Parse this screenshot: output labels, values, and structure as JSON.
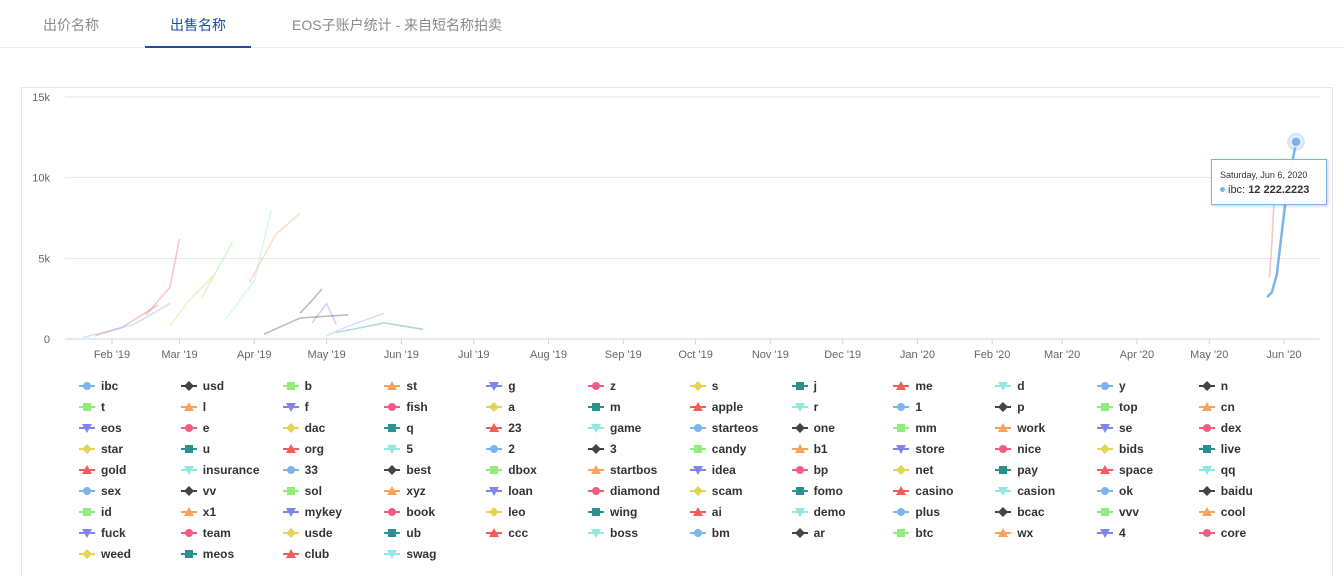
{
  "tabs": [
    {
      "label": "出价名称",
      "active": false
    },
    {
      "label": "出售名称",
      "active": true
    },
    {
      "label": "EOS子账户统计 - 来自短名称拍卖",
      "active": false
    }
  ],
  "colors": {
    "accent": "#1a4fa3",
    "palette": [
      "#7cb5ec",
      "#434348",
      "#90ed7d",
      "#f7a35c",
      "#8085e9",
      "#f15c80",
      "#e4d354",
      "#2b908f",
      "#f45b5b",
      "#91e8e1"
    ]
  },
  "tooltip": {
    "date": "Saturday, Jun 6, 2020",
    "series": "ibc",
    "value": "12 222.2223"
  },
  "chart_data": {
    "type": "line",
    "title": "",
    "xlabel": "",
    "ylabel": "",
    "ylim": [
      0,
      15000
    ],
    "yticks": [
      "0",
      "5k",
      "10k",
      "15k"
    ],
    "xticks": [
      "Feb '19",
      "Mar '19",
      "Apr '19",
      "May '19",
      "Jun '19",
      "Jul '19",
      "Aug '19",
      "Sep '19",
      "Oct '19",
      "Nov '19",
      "Dec '19",
      "Jan '20",
      "Feb '20",
      "Mar '20",
      "Apr '20",
      "May '20",
      "Jun '20"
    ],
    "grid": true,
    "legend_position": "bottom",
    "highlight": {
      "series": "ibc",
      "x": "2020-06-06",
      "y": 12222.2223
    },
    "series": [
      {
        "name": "ibc",
        "values": [
          [
            "2020-05-25",
            2600
          ],
          [
            "2020-05-27",
            2900
          ],
          [
            "2020-05-29",
            4000
          ],
          [
            "2020-06-02",
            9000
          ],
          [
            "2020-06-06",
            12222.2223
          ]
        ]
      },
      {
        "name": "usd",
        "values": [
          [
            "2019-04-20",
            1600
          ],
          [
            "2019-04-25",
            2400
          ],
          [
            "2019-04-29",
            3100
          ]
        ]
      },
      {
        "name": "b",
        "values": [
          [
            "2019-03-10",
            2500
          ],
          [
            "2019-03-18",
            4700
          ],
          [
            "2019-03-23",
            6000
          ]
        ]
      },
      {
        "name": "st",
        "values": [
          [
            "2019-03-30",
            3500
          ],
          [
            "2019-04-10",
            6500
          ],
          [
            "2019-04-20",
            7800
          ]
        ]
      },
      {
        "name": "g",
        "values": [
          [
            "2019-04-25",
            1000
          ],
          [
            "2019-05-01",
            2200
          ],
          [
            "2019-05-05",
            900
          ]
        ]
      },
      {
        "name": "z",
        "values": [
          [
            "2019-01-25",
            200
          ],
          [
            "2019-02-05",
            700
          ],
          [
            "2019-02-20",
            2100
          ]
        ]
      },
      {
        "name": "s",
        "values": [
          [
            "2019-02-25",
            800
          ],
          [
            "2019-03-05",
            2400
          ],
          [
            "2019-03-15",
            3900
          ]
        ]
      },
      {
        "name": "j",
        "values": [
          [
            "2019-05-05",
            400
          ],
          [
            "2019-05-25",
            1000
          ],
          [
            "2019-06-10",
            600
          ]
        ]
      },
      {
        "name": "me",
        "values": [
          [
            "2019-02-15",
            1500
          ],
          [
            "2019-02-25",
            3200
          ],
          [
            "2019-03-01",
            6200
          ]
        ]
      },
      {
        "name": "d",
        "values": [
          [
            "2019-03-20",
            1200
          ],
          [
            "2019-04-01",
            3600
          ],
          [
            "2019-04-08",
            8000
          ]
        ]
      },
      {
        "name": "y",
        "values": [
          [
            "2019-05-01",
            200
          ],
          [
            "2019-05-10",
            800
          ],
          [
            "2019-05-25",
            1600
          ]
        ]
      },
      {
        "name": "n",
        "values": [
          [
            "2019-04-05",
            300
          ],
          [
            "2019-04-20",
            1300
          ],
          [
            "2019-05-10",
            1500
          ]
        ]
      },
      {
        "name": "1",
        "values": [
          [
            "2019-01-20",
            100
          ],
          [
            "2019-02-10",
            900
          ],
          [
            "2019-02-25",
            2200
          ]
        ]
      },
      {
        "name": "gold",
        "values": [
          [
            "2020-05-26",
            3800
          ],
          [
            "2020-05-27",
            6000
          ],
          [
            "2020-05-28",
            9000
          ]
        ]
      }
    ]
  },
  "legend": [
    {
      "name": "ibc",
      "color": "#7cb5ec",
      "symbol": "circle"
    },
    {
      "name": "usd",
      "color": "#434348",
      "symbol": "diamond"
    },
    {
      "name": "b",
      "color": "#90ed7d",
      "symbol": "square"
    },
    {
      "name": "st",
      "color": "#f7a35c",
      "symbol": "triangle"
    },
    {
      "name": "g",
      "color": "#8085e9",
      "symbol": "triangle-down"
    },
    {
      "name": "z",
      "color": "#f15c80",
      "symbol": "circle"
    },
    {
      "name": "s",
      "color": "#e4d354",
      "symbol": "diamond"
    },
    {
      "name": "j",
      "color": "#2b908f",
      "symbol": "square"
    },
    {
      "name": "me",
      "color": "#f45b5b",
      "symbol": "triangle"
    },
    {
      "name": "d",
      "color": "#91e8e1",
      "symbol": "triangle-down"
    },
    {
      "name": "y",
      "color": "#7cb5ec",
      "symbol": "circle"
    },
    {
      "name": "n",
      "color": "#434348",
      "symbol": "diamond"
    },
    {
      "name": "t",
      "color": "#90ed7d",
      "symbol": "square"
    },
    {
      "name": "l",
      "color": "#f7a35c",
      "symbol": "triangle"
    },
    {
      "name": "f",
      "color": "#8085e9",
      "symbol": "triangle-down"
    },
    {
      "name": "fish",
      "color": "#f15c80",
      "symbol": "circle"
    },
    {
      "name": "a",
      "color": "#e4d354",
      "symbol": "diamond"
    },
    {
      "name": "m",
      "color": "#2b908f",
      "symbol": "square"
    },
    {
      "name": "apple",
      "color": "#f45b5b",
      "symbol": "triangle"
    },
    {
      "name": "r",
      "color": "#91e8e1",
      "symbol": "triangle-down"
    },
    {
      "name": "1",
      "color": "#7cb5ec",
      "symbol": "circle"
    },
    {
      "name": "p",
      "color": "#434348",
      "symbol": "diamond"
    },
    {
      "name": "top",
      "color": "#90ed7d",
      "symbol": "square"
    },
    {
      "name": "cn",
      "color": "#f7a35c",
      "symbol": "triangle"
    },
    {
      "name": "eos",
      "color": "#8085e9",
      "symbol": "triangle-down"
    },
    {
      "name": "e",
      "color": "#f15c80",
      "symbol": "circle"
    },
    {
      "name": "dac",
      "color": "#e4d354",
      "symbol": "diamond"
    },
    {
      "name": "q",
      "color": "#2b908f",
      "symbol": "square"
    },
    {
      "name": "23",
      "color": "#f45b5b",
      "symbol": "triangle"
    },
    {
      "name": "game",
      "color": "#91e8e1",
      "symbol": "triangle-down"
    },
    {
      "name": "starteos",
      "color": "#7cb5ec",
      "symbol": "circle"
    },
    {
      "name": "one",
      "color": "#434348",
      "symbol": "diamond"
    },
    {
      "name": "mm",
      "color": "#90ed7d",
      "symbol": "square"
    },
    {
      "name": "work",
      "color": "#f7a35c",
      "symbol": "triangle"
    },
    {
      "name": "se",
      "color": "#8085e9",
      "symbol": "triangle-down"
    },
    {
      "name": "dex",
      "color": "#f15c80",
      "symbol": "circle"
    },
    {
      "name": "star",
      "color": "#e4d354",
      "symbol": "diamond"
    },
    {
      "name": "u",
      "color": "#2b908f",
      "symbol": "square"
    },
    {
      "name": "org",
      "color": "#f45b5b",
      "symbol": "triangle"
    },
    {
      "name": "5",
      "color": "#91e8e1",
      "symbol": "triangle-down"
    },
    {
      "name": "2",
      "color": "#7cb5ec",
      "symbol": "circle"
    },
    {
      "name": "3",
      "color": "#434348",
      "symbol": "diamond"
    },
    {
      "name": "candy",
      "color": "#90ed7d",
      "symbol": "square"
    },
    {
      "name": "b1",
      "color": "#f7a35c",
      "symbol": "triangle"
    },
    {
      "name": "store",
      "color": "#8085e9",
      "symbol": "triangle-down"
    },
    {
      "name": "nice",
      "color": "#f15c80",
      "symbol": "circle"
    },
    {
      "name": "bids",
      "color": "#e4d354",
      "symbol": "diamond"
    },
    {
      "name": "live",
      "color": "#2b908f",
      "symbol": "square"
    },
    {
      "name": "gold",
      "color": "#f45b5b",
      "symbol": "triangle"
    },
    {
      "name": "insurance",
      "color": "#91e8e1",
      "symbol": "triangle-down"
    },
    {
      "name": "33",
      "color": "#7cb5ec",
      "symbol": "circle"
    },
    {
      "name": "best",
      "color": "#434348",
      "symbol": "diamond"
    },
    {
      "name": "dbox",
      "color": "#90ed7d",
      "symbol": "square"
    },
    {
      "name": "startbos",
      "color": "#f7a35c",
      "symbol": "triangle"
    },
    {
      "name": "idea",
      "color": "#8085e9",
      "symbol": "triangle-down"
    },
    {
      "name": "bp",
      "color": "#f15c80",
      "symbol": "circle"
    },
    {
      "name": "net",
      "color": "#e4d354",
      "symbol": "diamond"
    },
    {
      "name": "pay",
      "color": "#2b908f",
      "symbol": "square"
    },
    {
      "name": "space",
      "color": "#f45b5b",
      "symbol": "triangle"
    },
    {
      "name": "qq",
      "color": "#91e8e1",
      "symbol": "triangle-down"
    },
    {
      "name": "sex",
      "color": "#7cb5ec",
      "symbol": "circle"
    },
    {
      "name": "vv",
      "color": "#434348",
      "symbol": "diamond"
    },
    {
      "name": "sol",
      "color": "#90ed7d",
      "symbol": "square"
    },
    {
      "name": "xyz",
      "color": "#f7a35c",
      "symbol": "triangle"
    },
    {
      "name": "loan",
      "color": "#8085e9",
      "symbol": "triangle-down"
    },
    {
      "name": "diamond",
      "color": "#f15c80",
      "symbol": "circle"
    },
    {
      "name": "scam",
      "color": "#e4d354",
      "symbol": "diamond"
    },
    {
      "name": "fomo",
      "color": "#2b908f",
      "symbol": "square"
    },
    {
      "name": "casino",
      "color": "#f45b5b",
      "symbol": "triangle"
    },
    {
      "name": "casion",
      "color": "#91e8e1",
      "symbol": "triangle-down"
    },
    {
      "name": "ok",
      "color": "#7cb5ec",
      "symbol": "circle"
    },
    {
      "name": "baidu",
      "color": "#434348",
      "symbol": "diamond"
    },
    {
      "name": "id",
      "color": "#90ed7d",
      "symbol": "square"
    },
    {
      "name": "x1",
      "color": "#f7a35c",
      "symbol": "triangle"
    },
    {
      "name": "mykey",
      "color": "#8085e9",
      "symbol": "triangle-down"
    },
    {
      "name": "book",
      "color": "#f15c80",
      "symbol": "circle"
    },
    {
      "name": "leo",
      "color": "#e4d354",
      "symbol": "diamond"
    },
    {
      "name": "wing",
      "color": "#2b908f",
      "symbol": "square"
    },
    {
      "name": "ai",
      "color": "#f45b5b",
      "symbol": "triangle"
    },
    {
      "name": "demo",
      "color": "#91e8e1",
      "symbol": "triangle-down"
    },
    {
      "name": "plus",
      "color": "#7cb5ec",
      "symbol": "circle"
    },
    {
      "name": "bcac",
      "color": "#434348",
      "symbol": "diamond"
    },
    {
      "name": "vvv",
      "color": "#90ed7d",
      "symbol": "square"
    },
    {
      "name": "cool",
      "color": "#f7a35c",
      "symbol": "triangle"
    },
    {
      "name": "fuck",
      "color": "#8085e9",
      "symbol": "triangle-down"
    },
    {
      "name": "team",
      "color": "#f15c80",
      "symbol": "circle"
    },
    {
      "name": "usde",
      "color": "#e4d354",
      "symbol": "diamond"
    },
    {
      "name": "ub",
      "color": "#2b908f",
      "symbol": "square"
    },
    {
      "name": "ccc",
      "color": "#f45b5b",
      "symbol": "triangle"
    },
    {
      "name": "boss",
      "color": "#91e8e1",
      "symbol": "triangle-down"
    },
    {
      "name": "bm",
      "color": "#7cb5ec",
      "symbol": "circle"
    },
    {
      "name": "ar",
      "color": "#434348",
      "symbol": "diamond"
    },
    {
      "name": "btc",
      "color": "#90ed7d",
      "symbol": "square"
    },
    {
      "name": "wx",
      "color": "#f7a35c",
      "symbol": "triangle"
    },
    {
      "name": "4",
      "color": "#8085e9",
      "symbol": "triangle-down"
    },
    {
      "name": "core",
      "color": "#f15c80",
      "symbol": "circle"
    },
    {
      "name": "weed",
      "color": "#e4d354",
      "symbol": "diamond"
    },
    {
      "name": "meos",
      "color": "#2b908f",
      "symbol": "square"
    },
    {
      "name": "club",
      "color": "#f45b5b",
      "symbol": "triangle"
    },
    {
      "name": "swag",
      "color": "#91e8e1",
      "symbol": "triangle-down"
    }
  ]
}
